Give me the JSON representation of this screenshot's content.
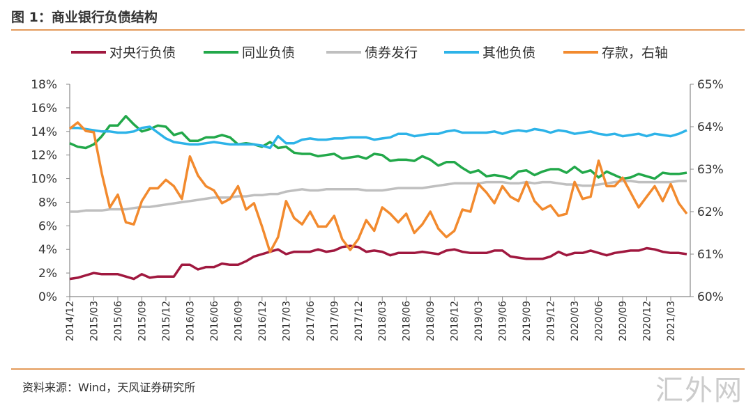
{
  "title": "图 1：商业银行负债结构",
  "source": "资料来源：Wind，天风证券研究所",
  "watermark": "汇外网",
  "chart_data": {
    "type": "line",
    "title": "",
    "x_start": "2014/12",
    "x_frequency": "monthly",
    "x_tick_labels": [
      "2014/12",
      "2015/03",
      "2015/06",
      "2015/09",
      "2015/12",
      "2016/03",
      "2016/06",
      "2016/09",
      "2016/12",
      "2017/03",
      "2017/06",
      "2017/09",
      "2017/12",
      "2018/03",
      "2018/06",
      "2018/09",
      "2018/12",
      "2019/03",
      "2019/06",
      "2019/09",
      "2019/12",
      "2020/03",
      "2020/06",
      "2020/09",
      "2020/12",
      "2021/03"
    ],
    "y_left": {
      "min": 0,
      "max": 18,
      "step": 2,
      "ticks": [
        "0%",
        "2%",
        "4%",
        "6%",
        "8%",
        "10%",
        "12%",
        "14%",
        "16%",
        "18%"
      ]
    },
    "y_right": {
      "min": 60,
      "max": 65,
      "step": 1,
      "ticks": [
        "60%",
        "61%",
        "62%",
        "63%",
        "64%",
        "65%"
      ]
    },
    "grid": false,
    "legend": "top",
    "series": [
      {
        "name": "对央行负债",
        "color": "#A0183F",
        "axis": "left",
        "values": [
          1.5,
          1.6,
          1.8,
          2.0,
          1.9,
          1.9,
          1.9,
          1.7,
          1.5,
          1.9,
          1.6,
          1.7,
          1.7,
          1.7,
          2.7,
          2.7,
          2.3,
          2.5,
          2.5,
          2.8,
          2.7,
          2.7,
          3.0,
          3.4,
          3.6,
          3.8,
          4.0,
          3.6,
          3.8,
          3.8,
          3.8,
          4.0,
          3.8,
          3.9,
          4.2,
          4.3,
          4.2,
          3.8,
          3.9,
          3.8,
          3.5,
          3.7,
          3.7,
          3.7,
          3.8,
          3.7,
          3.6,
          3.9,
          4.0,
          3.8,
          3.7,
          3.7,
          3.7,
          3.9,
          3.9,
          3.4,
          3.3,
          3.2,
          3.2,
          3.2,
          3.4,
          3.8,
          3.5,
          3.7,
          3.7,
          3.9,
          3.7,
          3.5,
          3.7,
          3.8,
          3.9,
          3.9,
          4.1,
          4.0,
          3.8,
          3.7,
          3.7,
          3.6
        ]
      },
      {
        "name": "同业负债",
        "color": "#22A84A",
        "axis": "left",
        "values": [
          13.0,
          12.7,
          12.6,
          12.9,
          13.6,
          14.5,
          14.5,
          15.3,
          14.6,
          14.0,
          14.2,
          14.5,
          14.4,
          13.7,
          13.9,
          13.2,
          13.2,
          13.5,
          13.5,
          13.7,
          13.5,
          12.9,
          13.0,
          12.9,
          12.7,
          13.1,
          12.6,
          12.7,
          12.2,
          12.1,
          12.1,
          11.9,
          12.0,
          12.1,
          11.7,
          11.8,
          11.9,
          11.7,
          12.1,
          12.0,
          11.5,
          11.6,
          11.6,
          11.5,
          11.9,
          11.6,
          11.1,
          11.4,
          11.4,
          10.9,
          10.5,
          10.7,
          10.2,
          10.3,
          10.2,
          10.0,
          10.6,
          10.7,
          10.3,
          10.6,
          10.8,
          10.8,
          10.5,
          11.0,
          10.5,
          10.7,
          10.1,
          10.6,
          10.3,
          10.0,
          10.1,
          10.4,
          10.2,
          10.0,
          10.5,
          10.4,
          10.4,
          10.5
        ]
      },
      {
        "name": "债券发行",
        "color": "#BFBFBF",
        "axis": "left",
        "values": [
          7.2,
          7.2,
          7.3,
          7.3,
          7.3,
          7.4,
          7.4,
          7.4,
          7.5,
          7.6,
          7.6,
          7.7,
          7.8,
          7.9,
          8.0,
          8.1,
          8.2,
          8.3,
          8.4,
          8.4,
          8.4,
          8.5,
          8.5,
          8.6,
          8.6,
          8.7,
          8.7,
          8.9,
          9.0,
          9.1,
          9.0,
          9.0,
          9.1,
          9.1,
          9.1,
          9.1,
          9.1,
          9.0,
          9.0,
          9.0,
          9.1,
          9.2,
          9.2,
          9.2,
          9.2,
          9.3,
          9.4,
          9.5,
          9.6,
          9.6,
          9.6,
          9.6,
          9.7,
          9.7,
          9.7,
          9.6,
          9.6,
          9.7,
          9.6,
          9.7,
          9.7,
          9.6,
          9.5,
          9.5,
          9.4,
          9.4,
          9.5,
          9.6,
          9.7,
          9.8,
          9.8,
          9.7,
          9.7,
          9.7,
          9.7,
          9.7,
          9.8,
          9.8
        ]
      },
      {
        "name": "其他负债",
        "color": "#2DB3E8",
        "axis": "left",
        "values": [
          14.3,
          14.3,
          14.2,
          14.1,
          14.0,
          14.0,
          13.9,
          13.9,
          14.0,
          14.3,
          14.4,
          13.9,
          13.4,
          13.1,
          13.0,
          12.9,
          12.9,
          13.0,
          13.1,
          13.0,
          12.9,
          12.9,
          12.9,
          12.9,
          12.8,
          12.6,
          13.6,
          13.0,
          13.0,
          13.3,
          13.4,
          13.3,
          13.3,
          13.4,
          13.4,
          13.5,
          13.5,
          13.5,
          13.3,
          13.4,
          13.5,
          13.8,
          13.8,
          13.6,
          13.7,
          13.8,
          13.8,
          14.0,
          14.1,
          13.9,
          13.9,
          13.9,
          13.9,
          14.0,
          13.8,
          14.0,
          14.1,
          14.0,
          14.2,
          14.1,
          13.9,
          14.1,
          14.0,
          13.8,
          13.9,
          14.0,
          13.8,
          13.7,
          13.8,
          13.6,
          13.7,
          13.8,
          13.6,
          13.8,
          13.7,
          13.6,
          13.8,
          14.1
        ]
      },
      {
        "name": "存款，右轴",
        "color": "#F28A2E",
        "axis": "right",
        "values": [
          63.95,
          64.1,
          63.9,
          63.87,
          62.9,
          62.1,
          62.4,
          61.75,
          61.7,
          62.25,
          62.55,
          62.55,
          62.75,
          62.6,
          62.3,
          63.3,
          62.85,
          62.6,
          62.5,
          62.2,
          62.3,
          62.6,
          62.05,
          62.2,
          61.65,
          61.05,
          61.4,
          62.25,
          61.85,
          61.7,
          62.0,
          61.65,
          61.65,
          61.9,
          61.35,
          61.1,
          61.35,
          61.8,
          61.55,
          62.1,
          61.95,
          61.75,
          61.95,
          61.5,
          61.7,
          62.0,
          61.6,
          61.4,
          61.55,
          62.05,
          62.0,
          62.65,
          62.45,
          62.2,
          62.6,
          62.35,
          62.25,
          62.7,
          62.25,
          62.05,
          62.15,
          61.9,
          61.95,
          62.7,
          62.3,
          62.35,
          63.2,
          62.6,
          62.6,
          62.8,
          62.45,
          62.1,
          62.35,
          62.6,
          62.25,
          62.65,
          62.2,
          61.95
        ]
      }
    ]
  }
}
